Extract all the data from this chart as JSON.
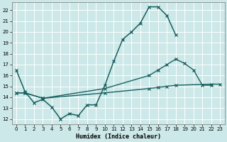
{
  "xlabel": "Humidex (Indice chaleur)",
  "bg_color": "#cce8e8",
  "grid_color": "#ffffff",
  "line_color": "#1a6060",
  "xlim": [
    -0.5,
    23.5
  ],
  "ylim": [
    11.5,
    22.7
  ],
  "yticks": [
    12,
    13,
    14,
    15,
    16,
    17,
    18,
    19,
    20,
    21,
    22
  ],
  "xticks": [
    0,
    1,
    2,
    3,
    4,
    5,
    6,
    7,
    8,
    9,
    10,
    11,
    12,
    13,
    14,
    15,
    16,
    17,
    18,
    19,
    20,
    21,
    22,
    23
  ],
  "curve1_x": [
    0,
    1,
    2,
    3,
    4,
    5,
    6,
    7,
    8,
    9,
    10,
    11,
    12,
    13,
    14,
    15,
    16,
    17,
    18
  ],
  "curve1_y": [
    16.5,
    14.5,
    13.5,
    13.8,
    13.1,
    12.0,
    12.5,
    12.3,
    13.3,
    13.3,
    15.1,
    17.3,
    19.3,
    20.0,
    20.8,
    22.3,
    22.3,
    21.5,
    19.7
  ],
  "curve2_x": [
    0,
    1,
    3,
    10,
    15,
    16,
    17,
    18,
    19,
    20,
    21,
    22
  ],
  "curve2_y": [
    14.4,
    14.4,
    13.9,
    14.8,
    16.0,
    16.5,
    17.0,
    17.5,
    17.1,
    16.5,
    15.1,
    15.1
  ],
  "curve3_x": [
    0,
    1,
    3,
    10,
    15,
    16,
    17,
    18,
    22,
    23
  ],
  "curve3_y": [
    14.4,
    14.4,
    13.9,
    14.4,
    14.8,
    14.9,
    15.0,
    15.1,
    15.2,
    15.2
  ]
}
